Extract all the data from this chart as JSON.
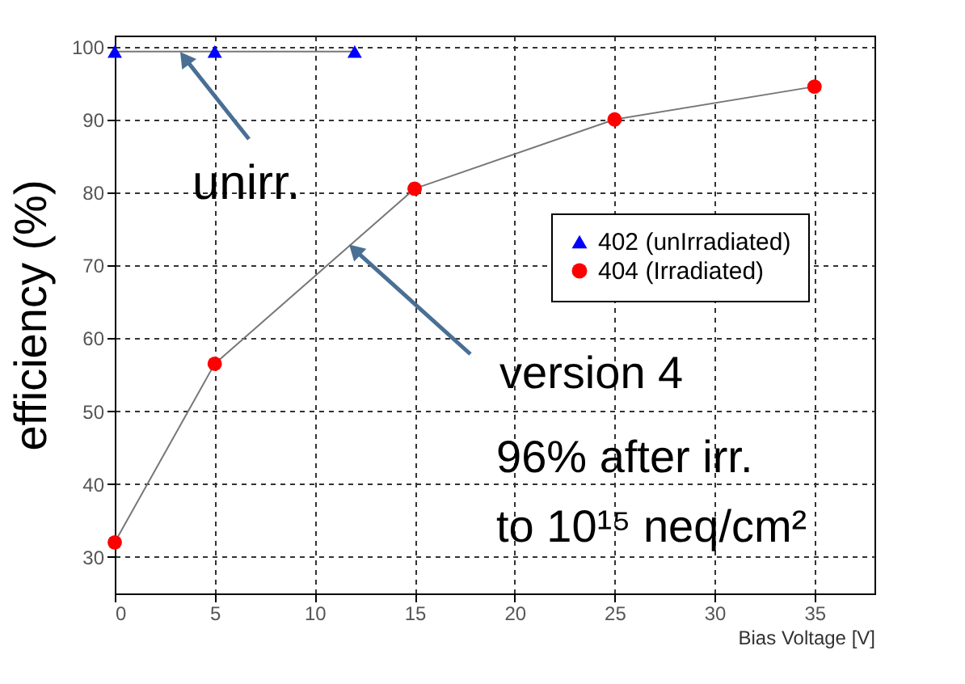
{
  "chart_data": {
    "type": "line",
    "xlabel": "Bias Voltage [V]",
    "ylabel": "efficiency (%)",
    "xlim": [
      0,
      38
    ],
    "ylim": [
      25,
      101.5
    ],
    "xticks": [
      0,
      5,
      10,
      15,
      20,
      25,
      30,
      35
    ],
    "yticks": [
      30,
      40,
      50,
      60,
      70,
      80,
      90,
      100
    ],
    "grid": true,
    "legend": "right",
    "series": [
      {
        "name": "402 (unIrradiated)",
        "color": "#0000ff",
        "marker": "triangle",
        "x": [
          0,
          5,
          12
        ],
        "values": [
          99.3,
          99.3,
          99.3
        ]
      },
      {
        "name": "404 (Irradiated)",
        "color": "#ff0000",
        "marker": "circle",
        "x": [
          0,
          5,
          15,
          25,
          35
        ],
        "values": [
          32,
          56.5,
          80.5,
          90,
          94.5
        ]
      }
    ],
    "annotations": [
      {
        "text": "unirr.",
        "x": 3.5,
        "y": 99.3
      },
      {
        "text": "version 4",
        "x": 12,
        "y": 73
      },
      "96% after irr.",
      "to 10¹⁵ neq/cm²"
    ]
  }
}
